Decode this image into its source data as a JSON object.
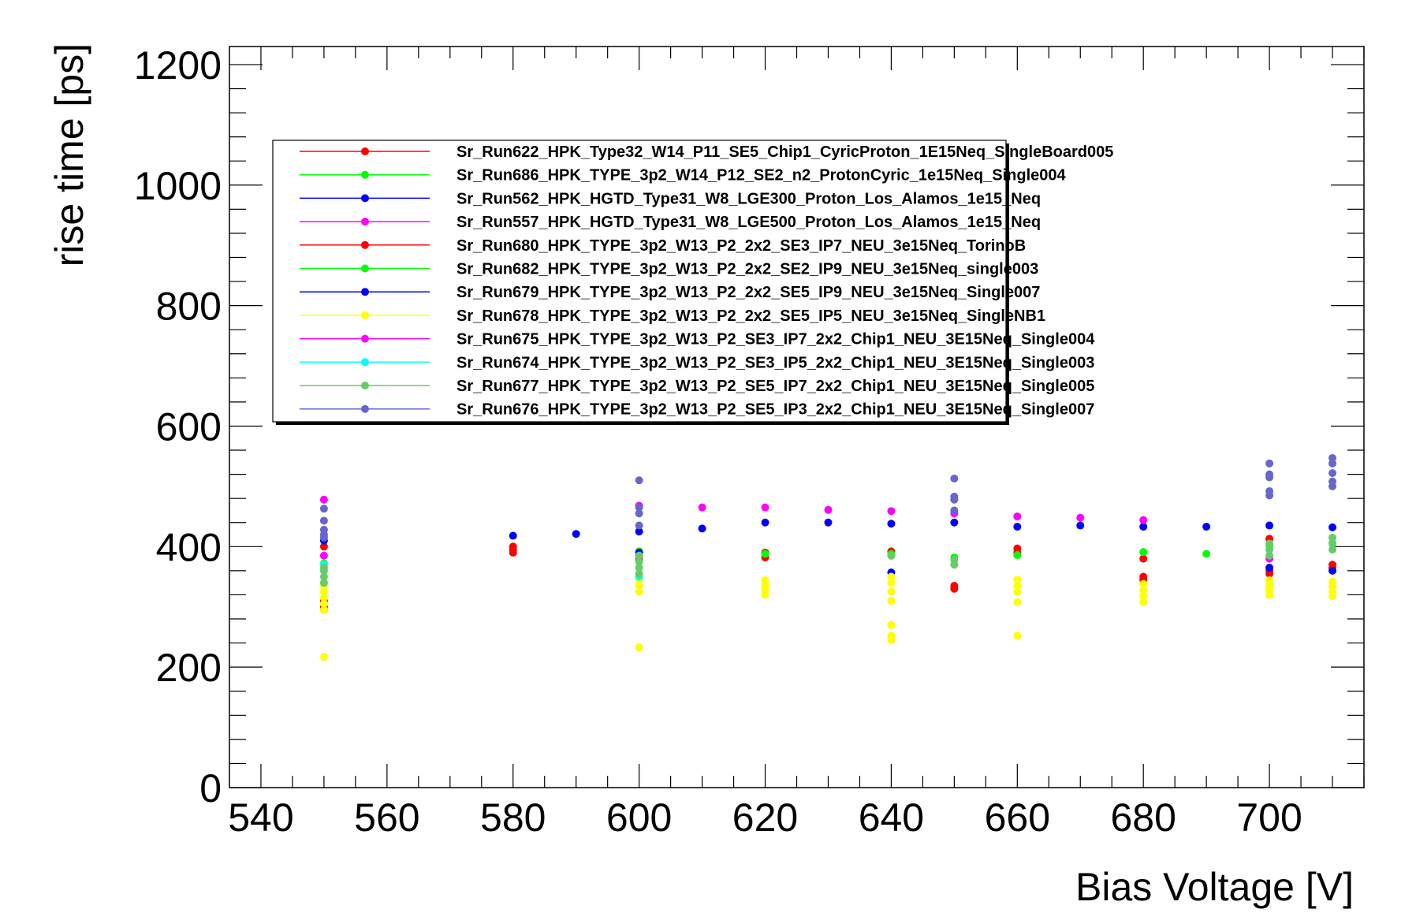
{
  "chart_data": {
    "type": "scatter",
    "title": "",
    "xlabel": "Bias Voltage [V]",
    "ylabel": "rise time [ps]",
    "xlim": [
      535,
      715
    ],
    "ylim": [
      0,
      1230
    ],
    "x_ticks": [
      540,
      560,
      580,
      600,
      620,
      640,
      660,
      680,
      700
    ],
    "y_ticks": [
      0,
      200,
      400,
      600,
      800,
      1000,
      1200
    ],
    "grid": false,
    "legend_position": "top-left",
    "series": [
      {
        "name": "Sr_Run622_HPK_Type32_W14_P11_SE5_Chip1_CyricProton_1E15Neq_SingleBoard005",
        "color": "#ff0000",
        "x": [
          580,
          580,
          580
        ],
        "y": [
          390,
          395,
          400
        ]
      },
      {
        "name": "Sr_Run686_HPK_TYPE_3p2_W14_P12_SE2_n2_ProtonCyric_1e15Neq_Single004",
        "color": "#00ff00",
        "x": [
          690
        ],
        "y": [
          388
        ]
      },
      {
        "name": "Sr_Run562_HPK_HGTD_Type31_W8_LGE300_Proton_Los_Alamos_1e15_Neq",
        "color": "#0000ff",
        "x": [
          580,
          590,
          600,
          610,
          620,
          630,
          640,
          650,
          660,
          670,
          680,
          690,
          700,
          710
        ],
        "y": [
          418,
          421,
          425,
          430,
          440,
          440,
          438,
          440,
          433,
          435,
          433,
          433,
          435,
          432
        ]
      },
      {
        "name": "Sr_Run557_HPK_HGTD_Type31_W8_LGE500_Proton_Los_Alamos_1e15_Neq",
        "color": "#ff00ff",
        "x": [
          550,
          600,
          610,
          620,
          630,
          640,
          650,
          660,
          670,
          680
        ],
        "y": [
          478,
          468,
          465,
          465,
          461,
          459,
          455,
          450,
          448,
          444
        ]
      },
      {
        "name": "Sr_Run680_HPK_TYPE_3p2_W13_P2_2x2_SE3_IP7_NEU_3e15Neq_TorinoB",
        "color": "#ff0000",
        "x": [
          550,
          550,
          550,
          550,
          600,
          600,
          620,
          620,
          640,
          640,
          650,
          650,
          660,
          660,
          680,
          680,
          680,
          700,
          700,
          700,
          710,
          710
        ],
        "y": [
          400,
          300,
          310,
          295,
          385,
          378,
          390,
          382,
          392,
          385,
          335,
          330,
          397,
          390,
          350,
          345,
          380,
          413,
          360,
          355,
          370,
          365
        ]
      },
      {
        "name": "Sr_Run682_HPK_TYPE_3p2_W13_P2_2x2_SE2_IP9_NEU_3e15Neq_single003",
        "color": "#00ff00",
        "x": [
          550,
          600,
          620,
          640,
          650,
          660,
          680,
          700,
          710
        ],
        "y": [
          372,
          392,
          388,
          388,
          382,
          386,
          391,
          402,
          406
        ]
      },
      {
        "name": "Sr_Run679_HPK_TYPE_3p2_W13_P2_2x2_SE5_IP9_NEU_3e15Neq_Single007",
        "color": "#0000ff",
        "x": [
          550,
          600,
          640,
          700,
          710
        ],
        "y": [
          410,
          390,
          357,
          365,
          360
        ]
      },
      {
        "name": "Sr_Run678_HPK_TYPE_3p2_W13_P2_2x2_SE5_IP5_NEU_3e15Neq_SingleNB1",
        "color": "#ffff00",
        "x": [
          550,
          550,
          550,
          550,
          550,
          550,
          600,
          600,
          600,
          600,
          620,
          620,
          620,
          620,
          640,
          640,
          640,
          640,
          640,
          640,
          640,
          660,
          660,
          660,
          660,
          660,
          680,
          680,
          680,
          680,
          700,
          700,
          700,
          700,
          710,
          710,
          710,
          710
        ],
        "y": [
          217,
          295,
          305,
          315,
          325,
          335,
          233,
          325,
          335,
          345,
          320,
          328,
          336,
          344,
          245,
          252,
          270,
          310,
          325,
          340,
          350,
          252,
          308,
          325,
          335,
          345,
          308,
          318,
          328,
          338,
          320,
          328,
          336,
          344,
          318,
          326,
          334,
          342
        ]
      },
      {
        "name": "Sr_Run675_HPK_TYPE_3p2_W13_P2_SE3_IP7_2x2_Chip1_NEU_3E15Neq_Single004",
        "color": "#ff00ff",
        "x": [
          550,
          600,
          700
        ],
        "y": [
          385,
          385,
          380
        ]
      },
      {
        "name": "Sr_Run674_HPK_TYPE_3p2_W13_P2_SE3_IP5_2x2_Chip1_NEU_3E15Neq_Single003",
        "color": "#00ffff",
        "x": [
          550,
          600
        ],
        "y": [
          370,
          350
        ]
      },
      {
        "name": "Sr_Run677_HPK_TYPE_3p2_W13_P2_SE5_IP7_2x2_Chip1_NEU_3E15Neq_Single005",
        "color": "#66cc66",
        "x": [
          550,
          550,
          550,
          550,
          600,
          600,
          600,
          600,
          640,
          650,
          650,
          700,
          700,
          700,
          710,
          710,
          710
        ],
        "y": [
          340,
          350,
          360,
          365,
          355,
          365,
          375,
          385,
          385,
          370,
          378,
          385,
          395,
          405,
          395,
          405,
          415
        ]
      },
      {
        "name": "Sr_Run676_HPK_TYPE_3p2_W13_P2_SE5_IP3_2x2_Chip1_NEU_3E15Neq_Single007",
        "color": "#6666cc",
        "x": [
          550,
          550,
          550,
          550,
          550,
          600,
          600,
          600,
          600,
          650,
          650,
          650,
          650,
          700,
          700,
          700,
          700,
          700,
          710,
          710,
          710,
          710,
          710
        ],
        "y": [
          415,
          420,
          428,
          443,
          463,
          510,
          465,
          455,
          435,
          513,
          483,
          478,
          460,
          538,
          520,
          515,
          492,
          485,
          547,
          538,
          522,
          508,
          500
        ]
      }
    ]
  }
}
